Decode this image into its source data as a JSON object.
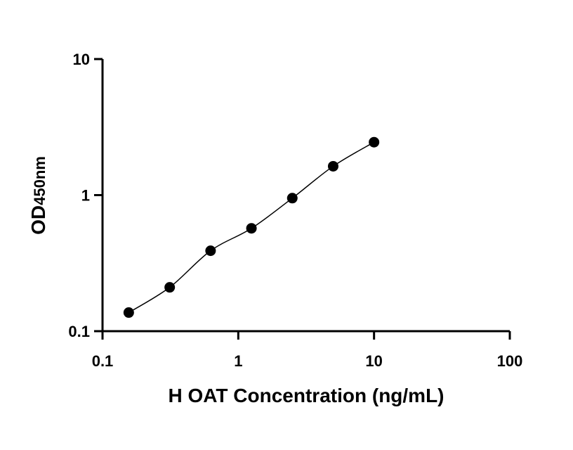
{
  "chart_data": {
    "type": "scatter",
    "xlabel": "H OAT Concentration (ng/mL)",
    "ylabel_main": "OD",
    "ylabel_sub": "450nm",
    "xscale": "log",
    "yscale": "log",
    "xlim": [
      0.1,
      100
    ],
    "ylim": [
      0.1,
      10
    ],
    "xticks": [
      "0.1",
      "1",
      "10",
      "100"
    ],
    "yticks": [
      "0.1",
      "1",
      "10"
    ],
    "grid": false,
    "legend": "none",
    "points": [
      {
        "x": 0.156,
        "y": 0.137
      },
      {
        "x": 0.3125,
        "y": 0.21
      },
      {
        "x": 0.625,
        "y": 0.39
      },
      {
        "x": 1.25,
        "y": 0.57
      },
      {
        "x": 2.5,
        "y": 0.95
      },
      {
        "x": 5,
        "y": 1.63
      },
      {
        "x": 10,
        "y": 2.45
      }
    ]
  }
}
